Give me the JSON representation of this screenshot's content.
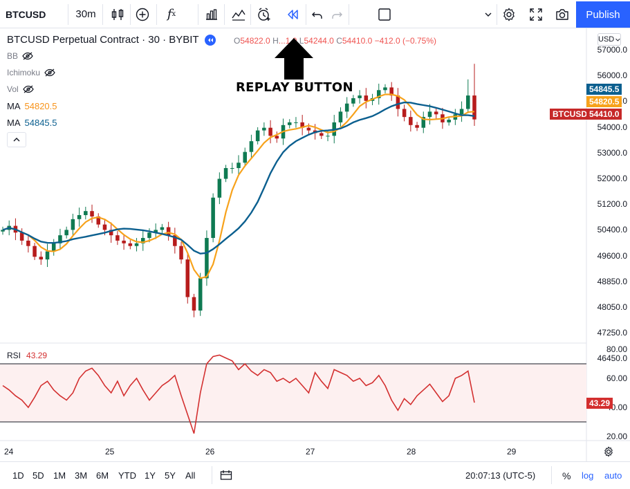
{
  "toolbar": {
    "symbol": "BTCUSD",
    "interval": "30m",
    "publish_label": "Publish",
    "icons": [
      "candles-icon",
      "add-indicator-icon",
      "fx-icon",
      "bar-chart-icon",
      "indicators-icon",
      "alert-icon",
      "replay-icon",
      "undo-icon",
      "redo-icon",
      "layout-icon",
      "chevron-down-icon",
      "gear-icon",
      "fullscreen-icon",
      "camera-icon"
    ]
  },
  "legend": {
    "title": "BTCUSD Perpetual Contract · 30 · BYBIT",
    "ohlc": {
      "o_label": "O",
      "o": "54822.0",
      "h_label": "H",
      "h": "...1.0",
      "l_label": "L",
      "l": "54244.0",
      "c_label": "C",
      "c": "54410.0",
      "change": "−412.0 (−0.75%)"
    },
    "indicators": [
      {
        "name": "BB",
        "value": ""
      },
      {
        "name": "Ichimoku",
        "value": ""
      },
      {
        "name": "Vol",
        "value": ""
      },
      {
        "name": "MA",
        "value": "54820.5",
        "color": "#f7931a"
      },
      {
        "name": "MA",
        "value": "54845.5",
        "color": "#0b5f8f"
      }
    ],
    "rsi_name": "RSI",
    "rsi_value": "43.29"
  },
  "annotation": {
    "text": "REPLAY BUTTON"
  },
  "currency": "USD",
  "price_axis": [
    "57000.0",
    "56000.0",
    "55200.0",
    "54000.0",
    "53000.0",
    "52000.0",
    "51200.0",
    "50400.0",
    "49600.0",
    "48850.0",
    "48050.0",
    "47250.0",
    "46450.0"
  ],
  "price_tags": {
    "ma_slow": "54845.5",
    "ma_fast": "54820.5",
    "symbol": "BTCUSD",
    "last": "54410.0"
  },
  "rsi_axis": [
    "80.00",
    "60.00",
    "40.00",
    "20.00"
  ],
  "rsi_tag": "43.29",
  "time_axis": [
    "24",
    "25",
    "26",
    "27",
    "28",
    "29"
  ],
  "bottom": {
    "ranges": [
      "1D",
      "5D",
      "1M",
      "3M",
      "6M",
      "YTD",
      "1Y",
      "5Y",
      "All"
    ],
    "time": "20:07:13 (UTC-5)",
    "percent": "%",
    "log": "log",
    "auto": "auto"
  },
  "colors": {
    "up": "#26a69a",
    "down": "#ef5350",
    "ma_fast": "#f7a21b",
    "ma_slow": "#0b5f8f",
    "rsi": "#d32f2f",
    "accent": "#2962ff"
  },
  "chart_data": {
    "type": "candlestick",
    "title": "BTCUSD Perpetual Contract · 30 · BYBIT",
    "ylim": [
      46000,
      57300
    ],
    "x_ticks": [
      "24",
      "25",
      "26",
      "27",
      "28",
      "29"
    ],
    "closes": [
      50300,
      50450,
      50200,
      49900,
      49700,
      49300,
      49200,
      49500,
      49800,
      50100,
      50300,
      50700,
      50850,
      51000,
      50800,
      50500,
      50300,
      50100,
      49900,
      49800,
      49700,
      49800,
      50000,
      50200,
      50300,
      50400,
      50100,
      49700,
      49200,
      47800,
      47300,
      48500,
      50000,
      51500,
      52200,
      52600,
      52600,
      52800,
      53200,
      53600,
      54000,
      54100,
      53800,
      53700,
      54200,
      54300,
      54300,
      54100,
      54000,
      53900,
      53800,
      53800,
      54300,
      54700,
      55000,
      55200,
      55300,
      55100,
      55200,
      55500,
      55600,
      55300,
      54800,
      54500,
      54200,
      54100,
      54500,
      54700,
      54600,
      54300,
      54400,
      54600,
      54800,
      55300,
      54410
    ],
    "ma_fast_last": 54820.5,
    "ma_slow_last": 54845.5,
    "rsi": {
      "ylim": [
        15,
        85
      ],
      "upper": 70,
      "lower": 30,
      "last": 43.29,
      "values": [
        55,
        52,
        48,
        45,
        40,
        47,
        55,
        58,
        52,
        48,
        45,
        50,
        60,
        65,
        67,
        62,
        55,
        50,
        58,
        48,
        55,
        60,
        52,
        45,
        50,
        55,
        58,
        62,
        48,
        35,
        22,
        50,
        70,
        75,
        76,
        74,
        72,
        66,
        70,
        65,
        62,
        66,
        64,
        58,
        60,
        57,
        60,
        55,
        50,
        64,
        58,
        53,
        66,
        64,
        62,
        58,
        60,
        55,
        57,
        62,
        55,
        45,
        38,
        46,
        42,
        48,
        52,
        56,
        50,
        44,
        48,
        60,
        62,
        65,
        43.29
      ]
    }
  }
}
